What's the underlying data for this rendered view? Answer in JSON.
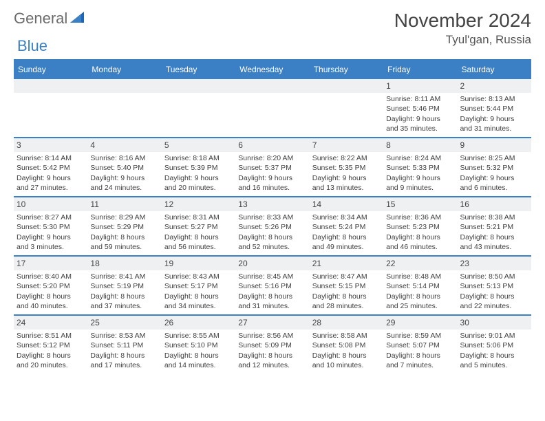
{
  "logo": {
    "text1": "General",
    "text2": "Blue"
  },
  "month_title": "November 2024",
  "location": "Tyul'gan, Russia",
  "colors": {
    "accent": "#3b7fc4",
    "dayband": "#eef0f1",
    "text": "#3e3e3e",
    "header_text": "#444444"
  },
  "days_of_week": [
    "Sunday",
    "Monday",
    "Tuesday",
    "Wednesday",
    "Thursday",
    "Friday",
    "Saturday"
  ],
  "weeks": [
    [
      {
        "day": "",
        "sunrise": "",
        "sunset": "",
        "daylight1": "",
        "daylight2": ""
      },
      {
        "day": "",
        "sunrise": "",
        "sunset": "",
        "daylight1": "",
        "daylight2": ""
      },
      {
        "day": "",
        "sunrise": "",
        "sunset": "",
        "daylight1": "",
        "daylight2": ""
      },
      {
        "day": "",
        "sunrise": "",
        "sunset": "",
        "daylight1": "",
        "daylight2": ""
      },
      {
        "day": "",
        "sunrise": "",
        "sunset": "",
        "daylight1": "",
        "daylight2": ""
      },
      {
        "day": "1",
        "sunrise": "Sunrise: 8:11 AM",
        "sunset": "Sunset: 5:46 PM",
        "daylight1": "Daylight: 9 hours",
        "daylight2": "and 35 minutes."
      },
      {
        "day": "2",
        "sunrise": "Sunrise: 8:13 AM",
        "sunset": "Sunset: 5:44 PM",
        "daylight1": "Daylight: 9 hours",
        "daylight2": "and 31 minutes."
      }
    ],
    [
      {
        "day": "3",
        "sunrise": "Sunrise: 8:14 AM",
        "sunset": "Sunset: 5:42 PM",
        "daylight1": "Daylight: 9 hours",
        "daylight2": "and 27 minutes."
      },
      {
        "day": "4",
        "sunrise": "Sunrise: 8:16 AM",
        "sunset": "Sunset: 5:40 PM",
        "daylight1": "Daylight: 9 hours",
        "daylight2": "and 24 minutes."
      },
      {
        "day": "5",
        "sunrise": "Sunrise: 8:18 AM",
        "sunset": "Sunset: 5:39 PM",
        "daylight1": "Daylight: 9 hours",
        "daylight2": "and 20 minutes."
      },
      {
        "day": "6",
        "sunrise": "Sunrise: 8:20 AM",
        "sunset": "Sunset: 5:37 PM",
        "daylight1": "Daylight: 9 hours",
        "daylight2": "and 16 minutes."
      },
      {
        "day": "7",
        "sunrise": "Sunrise: 8:22 AM",
        "sunset": "Sunset: 5:35 PM",
        "daylight1": "Daylight: 9 hours",
        "daylight2": "and 13 minutes."
      },
      {
        "day": "8",
        "sunrise": "Sunrise: 8:24 AM",
        "sunset": "Sunset: 5:33 PM",
        "daylight1": "Daylight: 9 hours",
        "daylight2": "and 9 minutes."
      },
      {
        "day": "9",
        "sunrise": "Sunrise: 8:25 AM",
        "sunset": "Sunset: 5:32 PM",
        "daylight1": "Daylight: 9 hours",
        "daylight2": "and 6 minutes."
      }
    ],
    [
      {
        "day": "10",
        "sunrise": "Sunrise: 8:27 AM",
        "sunset": "Sunset: 5:30 PM",
        "daylight1": "Daylight: 9 hours",
        "daylight2": "and 3 minutes."
      },
      {
        "day": "11",
        "sunrise": "Sunrise: 8:29 AM",
        "sunset": "Sunset: 5:29 PM",
        "daylight1": "Daylight: 8 hours",
        "daylight2": "and 59 minutes."
      },
      {
        "day": "12",
        "sunrise": "Sunrise: 8:31 AM",
        "sunset": "Sunset: 5:27 PM",
        "daylight1": "Daylight: 8 hours",
        "daylight2": "and 56 minutes."
      },
      {
        "day": "13",
        "sunrise": "Sunrise: 8:33 AM",
        "sunset": "Sunset: 5:26 PM",
        "daylight1": "Daylight: 8 hours",
        "daylight2": "and 52 minutes."
      },
      {
        "day": "14",
        "sunrise": "Sunrise: 8:34 AM",
        "sunset": "Sunset: 5:24 PM",
        "daylight1": "Daylight: 8 hours",
        "daylight2": "and 49 minutes."
      },
      {
        "day": "15",
        "sunrise": "Sunrise: 8:36 AM",
        "sunset": "Sunset: 5:23 PM",
        "daylight1": "Daylight: 8 hours",
        "daylight2": "and 46 minutes."
      },
      {
        "day": "16",
        "sunrise": "Sunrise: 8:38 AM",
        "sunset": "Sunset: 5:21 PM",
        "daylight1": "Daylight: 8 hours",
        "daylight2": "and 43 minutes."
      }
    ],
    [
      {
        "day": "17",
        "sunrise": "Sunrise: 8:40 AM",
        "sunset": "Sunset: 5:20 PM",
        "daylight1": "Daylight: 8 hours",
        "daylight2": "and 40 minutes."
      },
      {
        "day": "18",
        "sunrise": "Sunrise: 8:41 AM",
        "sunset": "Sunset: 5:19 PM",
        "daylight1": "Daylight: 8 hours",
        "daylight2": "and 37 minutes."
      },
      {
        "day": "19",
        "sunrise": "Sunrise: 8:43 AM",
        "sunset": "Sunset: 5:17 PM",
        "daylight1": "Daylight: 8 hours",
        "daylight2": "and 34 minutes."
      },
      {
        "day": "20",
        "sunrise": "Sunrise: 8:45 AM",
        "sunset": "Sunset: 5:16 PM",
        "daylight1": "Daylight: 8 hours",
        "daylight2": "and 31 minutes."
      },
      {
        "day": "21",
        "sunrise": "Sunrise: 8:47 AM",
        "sunset": "Sunset: 5:15 PM",
        "daylight1": "Daylight: 8 hours",
        "daylight2": "and 28 minutes."
      },
      {
        "day": "22",
        "sunrise": "Sunrise: 8:48 AM",
        "sunset": "Sunset: 5:14 PM",
        "daylight1": "Daylight: 8 hours",
        "daylight2": "and 25 minutes."
      },
      {
        "day": "23",
        "sunrise": "Sunrise: 8:50 AM",
        "sunset": "Sunset: 5:13 PM",
        "daylight1": "Daylight: 8 hours",
        "daylight2": "and 22 minutes."
      }
    ],
    [
      {
        "day": "24",
        "sunrise": "Sunrise: 8:51 AM",
        "sunset": "Sunset: 5:12 PM",
        "daylight1": "Daylight: 8 hours",
        "daylight2": "and 20 minutes."
      },
      {
        "day": "25",
        "sunrise": "Sunrise: 8:53 AM",
        "sunset": "Sunset: 5:11 PM",
        "daylight1": "Daylight: 8 hours",
        "daylight2": "and 17 minutes."
      },
      {
        "day": "26",
        "sunrise": "Sunrise: 8:55 AM",
        "sunset": "Sunset: 5:10 PM",
        "daylight1": "Daylight: 8 hours",
        "daylight2": "and 14 minutes."
      },
      {
        "day": "27",
        "sunrise": "Sunrise: 8:56 AM",
        "sunset": "Sunset: 5:09 PM",
        "daylight1": "Daylight: 8 hours",
        "daylight2": "and 12 minutes."
      },
      {
        "day": "28",
        "sunrise": "Sunrise: 8:58 AM",
        "sunset": "Sunset: 5:08 PM",
        "daylight1": "Daylight: 8 hours",
        "daylight2": "and 10 minutes."
      },
      {
        "day": "29",
        "sunrise": "Sunrise: 8:59 AM",
        "sunset": "Sunset: 5:07 PM",
        "daylight1": "Daylight: 8 hours",
        "daylight2": "and 7 minutes."
      },
      {
        "day": "30",
        "sunrise": "Sunrise: 9:01 AM",
        "sunset": "Sunset: 5:06 PM",
        "daylight1": "Daylight: 8 hours",
        "daylight2": "and 5 minutes."
      }
    ]
  ]
}
